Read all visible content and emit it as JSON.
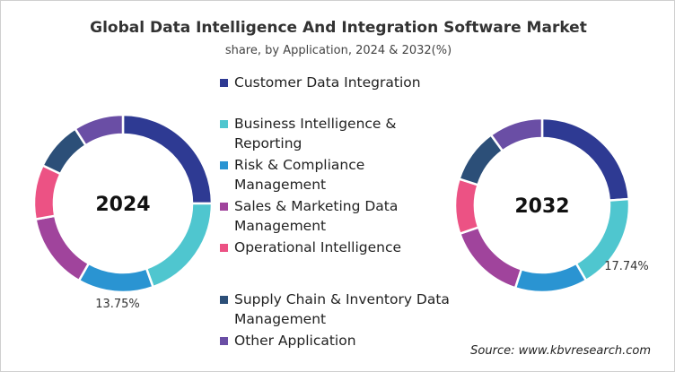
{
  "title": "Global Data Intelligence And Integration Software Market",
  "subtitle": "share, by Application, 2024 & 2032(%)",
  "source": "Source: www.kbvresearch.com",
  "chart_data": [
    {
      "type": "pie",
      "donut": true,
      "center_label": "2024",
      "categories": [
        "Customer Data Integration",
        "Business Intelligence & Reporting",
        "Risk & Compliance Management",
        "Sales & Marketing Data Management",
        "Operational Intelligence",
        "Supply Chain & Inventory Data Management",
        "Other Application"
      ],
      "values": [
        25.0,
        19.5,
        13.75,
        13.9,
        9.9,
        8.9,
        9.05
      ],
      "data_labels": [
        {
          "category": "Risk & Compliance Management",
          "text": "13.75%"
        }
      ]
    },
    {
      "type": "pie",
      "donut": true,
      "center_label": "2032",
      "categories": [
        "Customer Data Integration",
        "Business Intelligence & Reporting",
        "Risk & Compliance Management",
        "Sales & Marketing Data Management",
        "Operational Intelligence",
        "Supply Chain & Inventory Data Management",
        "Other Application"
      ],
      "values": [
        23.86,
        17.74,
        13.4,
        14.7,
        10.2,
        10.1,
        10.0
      ],
      "data_labels": [
        {
          "category": "Business Intelligence & Reporting",
          "text": "17.74%"
        }
      ]
    }
  ],
  "legend": [
    {
      "label": "Customer Data Integration",
      "color": "#2e3a93"
    },
    {
      "label": "Business Intelligence & Reporting",
      "color": "#4fc6cf"
    },
    {
      "label": "Risk & Compliance Management",
      "color": "#2a94d2"
    },
    {
      "label": "Sales & Marketing Data Management",
      "color": "#a0449c"
    },
    {
      "label": "Operational Intelligence",
      "color": "#ec5284"
    },
    {
      "label": "Supply Chain & Inventory Data Management",
      "color": "#2c4f78"
    },
    {
      "label": "Other Application",
      "color": "#6a4ea5"
    }
  ]
}
